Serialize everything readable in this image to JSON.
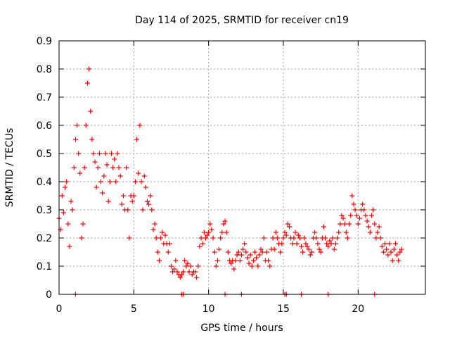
{
  "chart_data": {
    "type": "scatter",
    "title": "Day 114 of 2025, SRMTID for receiver cn19",
    "xlabel": "GPS time / hours",
    "ylabel": "SRMTID / TECUs",
    "xlim": [
      0,
      24.5
    ],
    "ylim": [
      0,
      0.9
    ],
    "xticks": [
      0,
      5,
      10,
      15,
      20
    ],
    "xtick_labels": [
      "0",
      "5",
      "10",
      "15",
      "20"
    ],
    "yticks": [
      0,
      0.1,
      0.2,
      0.3,
      0.4,
      0.5,
      0.6,
      0.7,
      0.8,
      0.9
    ],
    "ytick_labels": [
      "0",
      "0.1",
      "0.2",
      "0.3",
      "0.4",
      "0.5",
      "0.6",
      "0.7",
      "0.8",
      "0.9"
    ],
    "grid": true,
    "marker": "+",
    "color": "#ff0000",
    "series": [
      {
        "name": "SRMTID",
        "points": [
          [
            0.0,
            0.27
          ],
          [
            0.1,
            0.23
          ],
          [
            0.2,
            0.35
          ],
          [
            0.3,
            0.29
          ],
          [
            0.4,
            0.38
          ],
          [
            0.5,
            0.4
          ],
          [
            0.6,
            0.25
          ],
          [
            0.7,
            0.17
          ],
          [
            0.8,
            0.33
          ],
          [
            0.9,
            0.3
          ],
          [
            1.0,
            0.45
          ],
          [
            1.1,
            0.55
          ],
          [
            1.2,
            0.6
          ],
          [
            1.3,
            0.5
          ],
          [
            1.4,
            0.43
          ],
          [
            1.5,
            0.2
          ],
          [
            1.6,
            0.25
          ],
          [
            1.7,
            0.45
          ],
          [
            1.8,
            0.6
          ],
          [
            1.9,
            0.75
          ],
          [
            2.0,
            0.8
          ],
          [
            2.1,
            0.65
          ],
          [
            2.2,
            0.55
          ],
          [
            2.3,
            0.5
          ],
          [
            2.4,
            0.47
          ],
          [
            2.5,
            0.38
          ],
          [
            2.6,
            0.45
          ],
          [
            2.7,
            0.5
          ],
          [
            2.8,
            0.4
          ],
          [
            2.9,
            0.36
          ],
          [
            3.0,
            0.42
          ],
          [
            3.1,
            0.5
          ],
          [
            3.2,
            0.46
          ],
          [
            3.3,
            0.33
          ],
          [
            3.4,
            0.4
          ],
          [
            3.5,
            0.5
          ],
          [
            3.6,
            0.45
          ],
          [
            3.7,
            0.48
          ],
          [
            3.8,
            0.4
          ],
          [
            3.9,
            0.5
          ],
          [
            4.0,
            0.45
          ],
          [
            4.1,
            0.42
          ],
          [
            4.2,
            0.32
          ],
          [
            4.3,
            0.35
          ],
          [
            4.4,
            0.3
          ],
          [
            4.5,
            0.45
          ],
          [
            4.6,
            0.3
          ],
          [
            4.7,
            0.2
          ],
          [
            4.8,
            0.35
          ],
          [
            4.9,
            0.33
          ],
          [
            5.0,
            0.35
          ],
          [
            5.1,
            0.4
          ],
          [
            5.2,
            0.55
          ],
          [
            5.3,
            0.43
          ],
          [
            5.4,
            0.6
          ],
          [
            5.5,
            0.4
          ],
          [
            5.6,
            0.3
          ],
          [
            5.7,
            0.42
          ],
          [
            5.8,
            0.38
          ],
          [
            5.9,
            0.33
          ],
          [
            6.0,
            0.32
          ],
          [
            6.1,
            0.35
          ],
          [
            6.2,
            0.3
          ],
          [
            6.3,
            0.23
          ],
          [
            6.4,
            0.25
          ],
          [
            6.5,
            0.2
          ],
          [
            6.6,
            0.15
          ],
          [
            6.7,
            0.12
          ],
          [
            6.8,
            0.2
          ],
          [
            6.9,
            0.22
          ],
          [
            7.0,
            0.18
          ],
          [
            7.1,
            0.21
          ],
          [
            7.2,
            0.18
          ],
          [
            7.3,
            0.15
          ],
          [
            7.4,
            0.18
          ],
          [
            7.5,
            0.1
          ],
          [
            7.6,
            0.08
          ],
          [
            7.7,
            0.09
          ],
          [
            7.8,
            0.12
          ],
          [
            7.9,
            0.08
          ],
          [
            8.0,
            0.07
          ],
          [
            8.1,
            0.06
          ],
          [
            8.2,
            0.07
          ],
          [
            8.3,
            0.08
          ],
          [
            8.4,
            0.12
          ],
          [
            8.5,
            0.1
          ],
          [
            8.6,
            0.11
          ],
          [
            8.7,
            0.08
          ],
          [
            8.8,
            0.1
          ],
          [
            8.9,
            0.07
          ],
          [
            9.0,
            0.08
          ],
          [
            9.1,
            0.08
          ],
          [
            9.2,
            0.06
          ],
          [
            9.3,
            0.1
          ],
          [
            9.4,
            0.17
          ],
          [
            9.5,
            0.2
          ],
          [
            9.6,
            0.18
          ],
          [
            9.7,
            0.22
          ],
          [
            9.8,
            0.2
          ],
          [
            9.9,
            0.21
          ],
          [
            10.0,
            0.22
          ],
          [
            10.1,
            0.25
          ],
          [
            10.2,
            0.23
          ],
          [
            10.3,
            0.2
          ],
          [
            10.4,
            0.15
          ],
          [
            10.5,
            0.1
          ],
          [
            10.6,
            0.12
          ],
          [
            10.7,
            0.16
          ],
          [
            10.8,
            0.2
          ],
          [
            10.9,
            0.22
          ],
          [
            11.0,
            0.25
          ],
          [
            11.1,
            0.26
          ],
          [
            11.2,
            0.22
          ],
          [
            11.3,
            0.15
          ],
          [
            11.4,
            0.12
          ],
          [
            11.5,
            0.11
          ],
          [
            11.6,
            0.12
          ],
          [
            11.7,
            0.09
          ],
          [
            11.8,
            0.12
          ],
          [
            11.9,
            0.14
          ],
          [
            12.0,
            0.15
          ],
          [
            12.1,
            0.12
          ],
          [
            12.2,
            0.14
          ],
          [
            12.3,
            0.16
          ],
          [
            12.4,
            0.18
          ],
          [
            12.5,
            0.15
          ],
          [
            12.6,
            0.13
          ],
          [
            12.7,
            0.11
          ],
          [
            12.8,
            0.14
          ],
          [
            12.9,
            0.1
          ],
          [
            13.0,
            0.12
          ],
          [
            13.1,
            0.15
          ],
          [
            13.2,
            0.13
          ],
          [
            13.3,
            0.1
          ],
          [
            13.4,
            0.14
          ],
          [
            13.5,
            0.16
          ],
          [
            13.6,
            0.15
          ],
          [
            13.7,
            0.2
          ],
          [
            13.8,
            0.12
          ],
          [
            13.9,
            0.15
          ],
          [
            14.0,
            0.12
          ],
          [
            14.1,
            0.1
          ],
          [
            14.2,
            0.16
          ],
          [
            14.3,
            0.2
          ],
          [
            14.4,
            0.16
          ],
          [
            14.5,
            0.22
          ],
          [
            14.6,
            0.2
          ],
          [
            14.7,
            0.18
          ],
          [
            14.8,
            0.15
          ],
          [
            14.9,
            0.18
          ],
          [
            15.0,
            0.2
          ],
          [
            15.1,
            0.22
          ],
          [
            15.2,
            0.21
          ],
          [
            15.3,
            0.25
          ],
          [
            15.4,
            0.24
          ],
          [
            15.5,
            0.2
          ],
          [
            15.6,
            0.18
          ],
          [
            15.7,
            0.2
          ],
          [
            15.8,
            0.22
          ],
          [
            15.9,
            0.18
          ],
          [
            16.0,
            0.21
          ],
          [
            16.1,
            0.2
          ],
          [
            16.2,
            0.17
          ],
          [
            16.3,
            0.15
          ],
          [
            16.4,
            0.2
          ],
          [
            16.5,
            0.18
          ],
          [
            16.6,
            0.17
          ],
          [
            16.7,
            0.16
          ],
          [
            16.8,
            0.14
          ],
          [
            16.9,
            0.15
          ],
          [
            17.0,
            0.2
          ],
          [
            17.1,
            0.22
          ],
          [
            17.2,
            0.2
          ],
          [
            17.3,
            0.18
          ],
          [
            17.4,
            0.16
          ],
          [
            17.5,
            0.15
          ],
          [
            17.6,
            0.2
          ],
          [
            17.7,
            0.24
          ],
          [
            17.8,
            0.2
          ],
          [
            17.9,
            0.18
          ],
          [
            18.0,
            0.17
          ],
          [
            18.1,
            0.19
          ],
          [
            18.2,
            0.18
          ],
          [
            18.3,
            0.2
          ],
          [
            18.4,
            0.16
          ],
          [
            18.5,
            0.18
          ],
          [
            18.6,
            0.2
          ],
          [
            18.7,
            0.22
          ],
          [
            18.8,
            0.25
          ],
          [
            18.9,
            0.28
          ],
          [
            19.0,
            0.27
          ],
          [
            19.1,
            0.25
          ],
          [
            19.2,
            0.22
          ],
          [
            19.3,
            0.2
          ],
          [
            19.4,
            0.25
          ],
          [
            19.5,
            0.28
          ],
          [
            19.6,
            0.35
          ],
          [
            19.7,
            0.32
          ],
          [
            19.8,
            0.3
          ],
          [
            19.9,
            0.28
          ],
          [
            20.0,
            0.25
          ],
          [
            20.1,
            0.27
          ],
          [
            20.2,
            0.3
          ],
          [
            20.3,
            0.32
          ],
          [
            20.4,
            0.3
          ],
          [
            20.5,
            0.28
          ],
          [
            20.6,
            0.26
          ],
          [
            20.7,
            0.24
          ],
          [
            20.8,
            0.22
          ],
          [
            20.9,
            0.28
          ],
          [
            21.0,
            0.3
          ],
          [
            21.1,
            0.25
          ],
          [
            21.2,
            0.2
          ],
          [
            21.3,
            0.22
          ],
          [
            21.4,
            0.24
          ],
          [
            21.5,
            0.2
          ],
          [
            21.6,
            0.17
          ],
          [
            21.7,
            0.15
          ],
          [
            21.8,
            0.18
          ],
          [
            21.9,
            0.16
          ],
          [
            22.0,
            0.14
          ],
          [
            22.1,
            0.18
          ],
          [
            22.2,
            0.15
          ],
          [
            22.3,
            0.12
          ],
          [
            22.4,
            0.16
          ],
          [
            22.5,
            0.18
          ],
          [
            22.6,
            0.14
          ],
          [
            22.7,
            0.12
          ],
          [
            22.8,
            0.15
          ],
          [
            22.9,
            0.16
          ]
        ]
      }
    ],
    "zero_marks_x": [
      1.1,
      8.2,
      8.3,
      11.1,
      12.2,
      15.1,
      15.2,
      16.2,
      18.0,
      21.1
    ]
  }
}
